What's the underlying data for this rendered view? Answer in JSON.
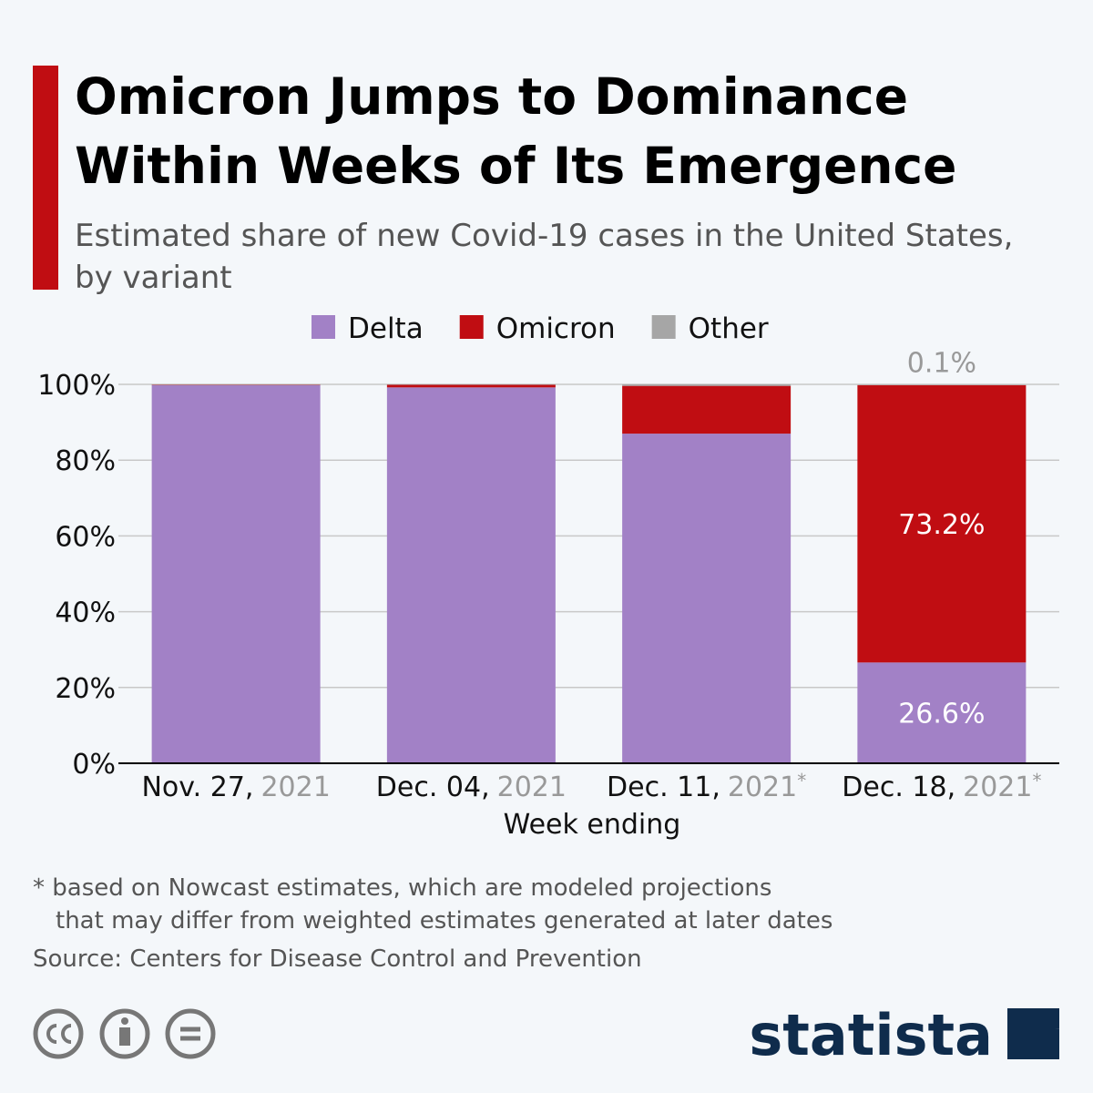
{
  "chart_data": {
    "type": "stacked_bar",
    "title": [
      "Omicron Jumps to Dominance",
      "Within Weeks of Its Emergence"
    ],
    "subtitle": [
      "Estimated share of new Covid-19 cases in the United States,",
      "by variant"
    ],
    "categories": [
      "Nov. 27,",
      "Dec. 04,",
      "Dec. 11,",
      "Dec. 18,"
    ],
    "category_years": [
      "2021",
      "2021",
      "2021",
      "2021"
    ],
    "category_marks": [
      null,
      null,
      "*",
      "*"
    ],
    "x_label": "Week ending",
    "series": [
      {
        "name": "Delta",
        "color": "#a281c6",
        "values": [
          99.8,
          99.2,
          87.0,
          26.6
        ],
        "value_labels": [
          null,
          null,
          null,
          "26.6%"
        ]
      },
      {
        "name": "Omicron",
        "color": "#c00d12",
        "values": [
          0.1,
          0.7,
          12.6,
          73.2
        ],
        "value_labels": [
          null,
          null,
          null,
          "73.2%"
        ]
      },
      {
        "name": "Other",
        "color": "#a6a6a6",
        "values": [
          0.1,
          0.1,
          0.4,
          0.1
        ],
        "value_labels": [
          null,
          null,
          null,
          "0.1%"
        ]
      }
    ],
    "ylim": [
      0,
      100
    ],
    "yticks": [
      {
        "value": 0,
        "label": "0%"
      },
      {
        "value": 20,
        "label": "20%"
      },
      {
        "value": 40,
        "label": "40%"
      },
      {
        "value": 60,
        "label": "60%"
      },
      {
        "value": 80,
        "label": "80%"
      },
      {
        "value": 100,
        "label": "100%"
      }
    ],
    "grid": true,
    "legend": "top",
    "footnote": [
      "* based on Nowcast estimates, which are modeled projections",
      "that may differ from weighted estimates generated at later dates"
    ],
    "source": "Source: Centers for Disease Control and Prevention",
    "brand": "statista"
  }
}
